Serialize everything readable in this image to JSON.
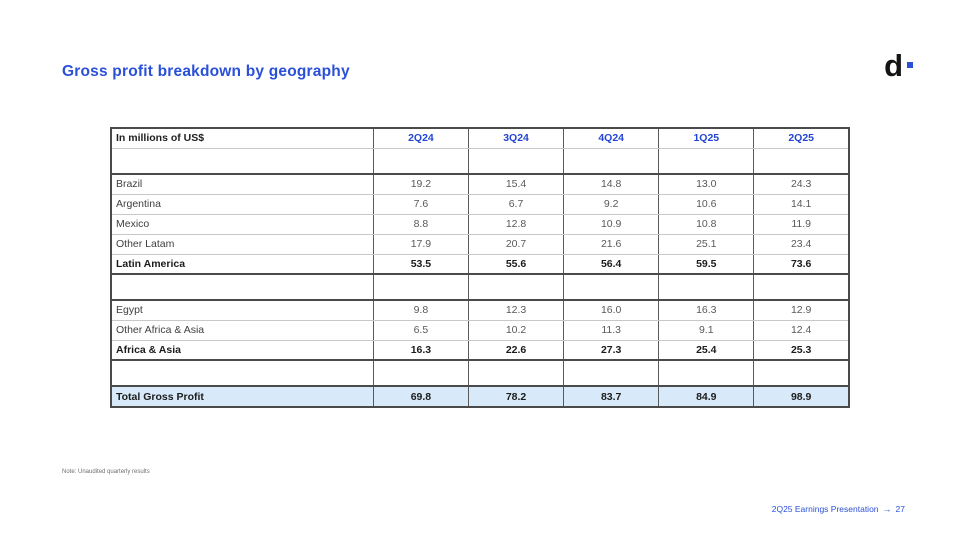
{
  "slide": {
    "title": "Gross profit breakdown by geography",
    "logo_text": "d",
    "note": "Note: Unaudited quarterly results",
    "footer": {
      "label": "2Q25 Earnings Presentation",
      "arrow": "→",
      "page": "27"
    }
  },
  "colors": {
    "accent_blue": "#2a50d8",
    "header_blue": "#2344d4",
    "total_row_bg": "#d8eaf9",
    "table_border_dark": "#4a4a4a",
    "table_border_light": "#c8c8c8"
  },
  "table": {
    "unit_header": "In millions of US$",
    "columns": [
      "2Q24",
      "3Q24",
      "4Q24",
      "1Q25",
      "2Q25"
    ],
    "rows": [
      {
        "label": "",
        "style": "spacer",
        "values": [
          "",
          "",
          "",
          "",
          ""
        ]
      },
      {
        "label": "Brazil",
        "style": "normal",
        "values": [
          "19.2",
          "15.4",
          "14.8",
          "13.0",
          "24.3"
        ]
      },
      {
        "label": "Argentina",
        "style": "normal",
        "values": [
          "7.6",
          "6.7",
          "9.2",
          "10.6",
          "14.1"
        ]
      },
      {
        "label": "Mexico",
        "style": "normal",
        "values": [
          "8.8",
          "12.8",
          "10.9",
          "10.8",
          "11.9"
        ]
      },
      {
        "label": "Other Latam",
        "style": "normal",
        "values": [
          "17.9",
          "20.7",
          "21.6",
          "25.1",
          "23.4"
        ]
      },
      {
        "label": "Latin America",
        "style": "subtotal",
        "values": [
          "53.5",
          "55.6",
          "56.4",
          "59.5",
          "73.6"
        ]
      },
      {
        "label": "",
        "style": "spacer",
        "values": [
          "",
          "",
          "",
          "",
          ""
        ]
      },
      {
        "label": "Egypt",
        "style": "normal",
        "values": [
          "9.8",
          "12.3",
          "16.0",
          "16.3",
          "12.9"
        ]
      },
      {
        "label": "Other Africa & Asia",
        "style": "normal",
        "values": [
          "6.5",
          "10.2",
          "11.3",
          "9.1",
          "12.4"
        ]
      },
      {
        "label": "Africa & Asia",
        "style": "subtotal",
        "values": [
          "16.3",
          "22.6",
          "27.3",
          "25.4",
          "25.3"
        ]
      },
      {
        "label": "",
        "style": "spacer",
        "values": [
          "",
          "",
          "",
          "",
          ""
        ]
      },
      {
        "label": "Total Gross Profit",
        "style": "total",
        "values": [
          "69.8",
          "78.2",
          "83.7",
          "84.9",
          "98.9"
        ]
      }
    ]
  }
}
